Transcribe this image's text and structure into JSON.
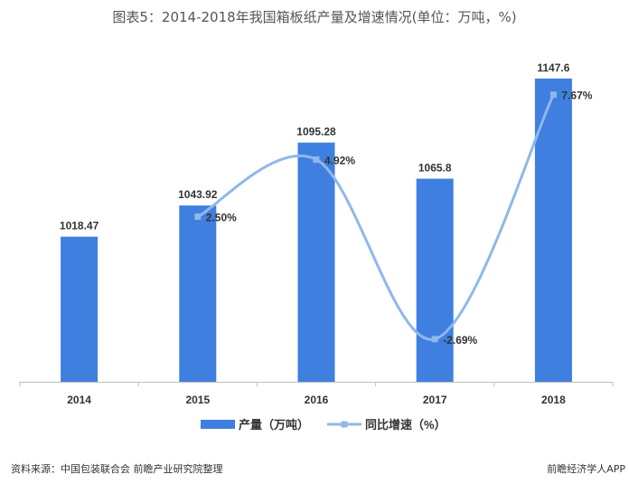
{
  "title": "图表5：2014-2018年我国箱板纸产量及增速情况(单位：万吨，%)",
  "footer": {
    "source": "资料来源：中国包装联合会 前瞻产业研究院整理",
    "watermark": "前瞻经济学人APP"
  },
  "colors": {
    "bar": "#3f7fe0",
    "line": "#8fb8ea",
    "axis": "#bfbfbf",
    "label": "#333333"
  },
  "chart_data": {
    "type": "bar",
    "categories": [
      "2014",
      "2015",
      "2016",
      "2017",
      "2018"
    ],
    "series": [
      {
        "name": "产量（万吨）",
        "type": "bar",
        "axis": "left",
        "values": [
          1018.47,
          1043.92,
          1095.28,
          1065.8,
          1147.6
        ],
        "labels": [
          "1018.47",
          "1043.92",
          "1095.28",
          "1065.8",
          "1147.6"
        ]
      },
      {
        "name": "同比增速（%）",
        "type": "line",
        "axis": "right",
        "smooth": true,
        "values": [
          null,
          2.5,
          4.92,
          -2.69,
          7.67
        ],
        "labels": [
          "",
          "2.50%",
          "4.92%",
          "-2.69%",
          "7.67%"
        ]
      }
    ],
    "ylim_left": [
      900,
      1160
    ],
    "ylim_right": [
      -4.5,
      9
    ],
    "grid": false,
    "legend": "bottom"
  }
}
